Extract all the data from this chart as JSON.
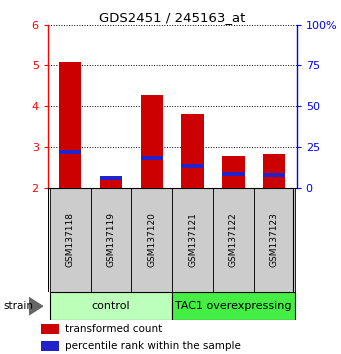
{
  "title": "GDS2451 / 245163_at",
  "samples": [
    "GSM137118",
    "GSM137119",
    "GSM137120",
    "GSM137121",
    "GSM137122",
    "GSM137123"
  ],
  "red_values": [
    5.08,
    2.19,
    4.28,
    3.8,
    2.78,
    2.82
  ],
  "blue_values": [
    2.83,
    2.19,
    2.67,
    2.49,
    2.29,
    2.27
  ],
  "ylim_left": [
    2,
    6
  ],
  "ylim_right": [
    0,
    100
  ],
  "yticks_left": [
    2,
    3,
    4,
    5,
    6
  ],
  "yticks_right": [
    0,
    25,
    50,
    75,
    100
  ],
  "ytick_labels_right": [
    "0",
    "25",
    "50",
    "75",
    "100%"
  ],
  "groups": [
    {
      "label": "control",
      "indices": [
        0,
        1,
        2
      ],
      "color": "#bbffbb"
    },
    {
      "label": "TAC1 overexpressing",
      "indices": [
        3,
        4,
        5
      ],
      "color": "#44ee44"
    }
  ],
  "bar_width": 0.55,
  "red_color": "#cc0000",
  "blue_color": "#2222cc",
  "strain_label": "strain",
  "legend_red": "transformed count",
  "legend_blue": "percentile rank within the sample",
  "bar_base": 2.0,
  "blue_bar_height": 0.1
}
